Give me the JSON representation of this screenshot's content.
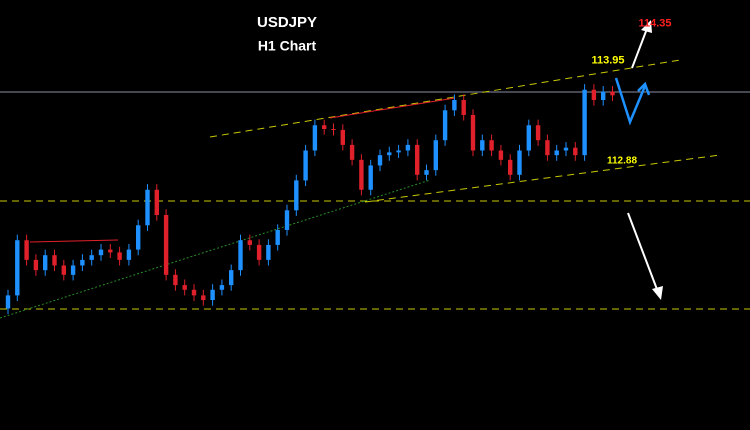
{
  "chart_data": {
    "type": "candlestick",
    "title": "USDJPY",
    "subtitle": "H1 Chart",
    "ylim": [
      110.0,
      114.6
    ],
    "up_color": "#1e90ff",
    "down_color": "#e0202a",
    "open": [
      111.3,
      111.44,
      112.03,
      111.82,
      111.71,
      111.87,
      111.76,
      111.66,
      111.76,
      111.82,
      111.87,
      111.93,
      111.9,
      111.82,
      111.93,
      112.19,
      112.57,
      112.3,
      111.66,
      111.55,
      111.5,
      111.44,
      111.39,
      111.5,
      111.55,
      111.71,
      112.03,
      111.98,
      111.82,
      111.98,
      112.14,
      112.35,
      112.67,
      112.99,
      113.26,
      113.22,
      113.21,
      113.05,
      112.89,
      112.57,
      112.83,
      112.94,
      112.97,
      112.99,
      113.05,
      112.73,
      112.78,
      113.1,
      113.42,
      113.53,
      113.37,
      112.99,
      113.1,
      112.99,
      112.89,
      112.73,
      112.99,
      113.26,
      113.1,
      112.94,
      112.99,
      113.02,
      112.94,
      113.64,
      113.53,
      113.62
    ],
    "high": [
      111.5,
      112.09,
      112.09,
      111.88,
      111.93,
      111.93,
      111.82,
      111.82,
      111.88,
      111.93,
      111.99,
      111.99,
      111.96,
      111.99,
      112.25,
      112.63,
      112.63,
      112.36,
      111.72,
      111.61,
      111.56,
      111.5,
      111.56,
      111.61,
      111.77,
      112.09,
      112.09,
      112.04,
      112.04,
      112.2,
      112.41,
      112.73,
      113.05,
      113.32,
      113.32,
      113.28,
      113.27,
      113.11,
      112.95,
      112.89,
      113.0,
      113.03,
      113.05,
      113.11,
      113.11,
      112.84,
      113.16,
      113.48,
      113.59,
      113.59,
      113.43,
      113.16,
      113.16,
      113.05,
      112.95,
      113.05,
      113.32,
      113.32,
      113.16,
      113.05,
      113.08,
      113.08,
      113.7,
      113.7,
      113.68,
      113.68
    ],
    "low": [
      111.24,
      111.38,
      111.76,
      111.65,
      111.65,
      111.7,
      111.6,
      111.6,
      111.7,
      111.76,
      111.81,
      111.84,
      111.76,
      111.76,
      111.87,
      112.13,
      112.24,
      111.6,
      111.49,
      111.44,
      111.38,
      111.33,
      111.33,
      111.44,
      111.49,
      111.65,
      111.92,
      111.76,
      111.76,
      111.92,
      112.08,
      112.29,
      112.61,
      112.93,
      113.16,
      113.15,
      112.99,
      112.83,
      112.51,
      112.51,
      112.77,
      112.88,
      112.91,
      112.93,
      112.67,
      112.67,
      112.72,
      113.04,
      113.36,
      113.31,
      112.93,
      112.93,
      112.93,
      112.83,
      112.67,
      112.67,
      112.93,
      113.04,
      112.88,
      112.88,
      112.93,
      112.88,
      112.88,
      113.47,
      113.47,
      113.52
    ],
    "close": [
      111.44,
      112.03,
      111.82,
      111.71,
      111.87,
      111.76,
      111.66,
      111.76,
      111.82,
      111.87,
      111.93,
      111.9,
      111.82,
      111.93,
      112.19,
      112.57,
      112.3,
      111.66,
      111.55,
      111.5,
      111.44,
      111.39,
      111.5,
      111.55,
      111.71,
      112.03,
      111.98,
      111.82,
      111.98,
      112.14,
      112.35,
      112.67,
      112.99,
      113.26,
      113.22,
      113.21,
      113.05,
      112.89,
      112.57,
      112.83,
      112.94,
      112.97,
      112.99,
      113.05,
      112.73,
      112.78,
      113.1,
      113.42,
      113.53,
      113.37,
      112.99,
      113.1,
      112.99,
      112.89,
      112.73,
      112.99,
      113.26,
      113.1,
      112.94,
      112.99,
      113.02,
      112.94,
      113.64,
      113.53,
      113.62,
      113.58
    ],
    "levels": [
      {
        "value": 114.35,
        "color": "#ff2020"
      },
      {
        "value": 113.95,
        "color": "#ffff00"
      },
      {
        "value": 112.88,
        "color": "#ffff00"
      }
    ]
  }
}
